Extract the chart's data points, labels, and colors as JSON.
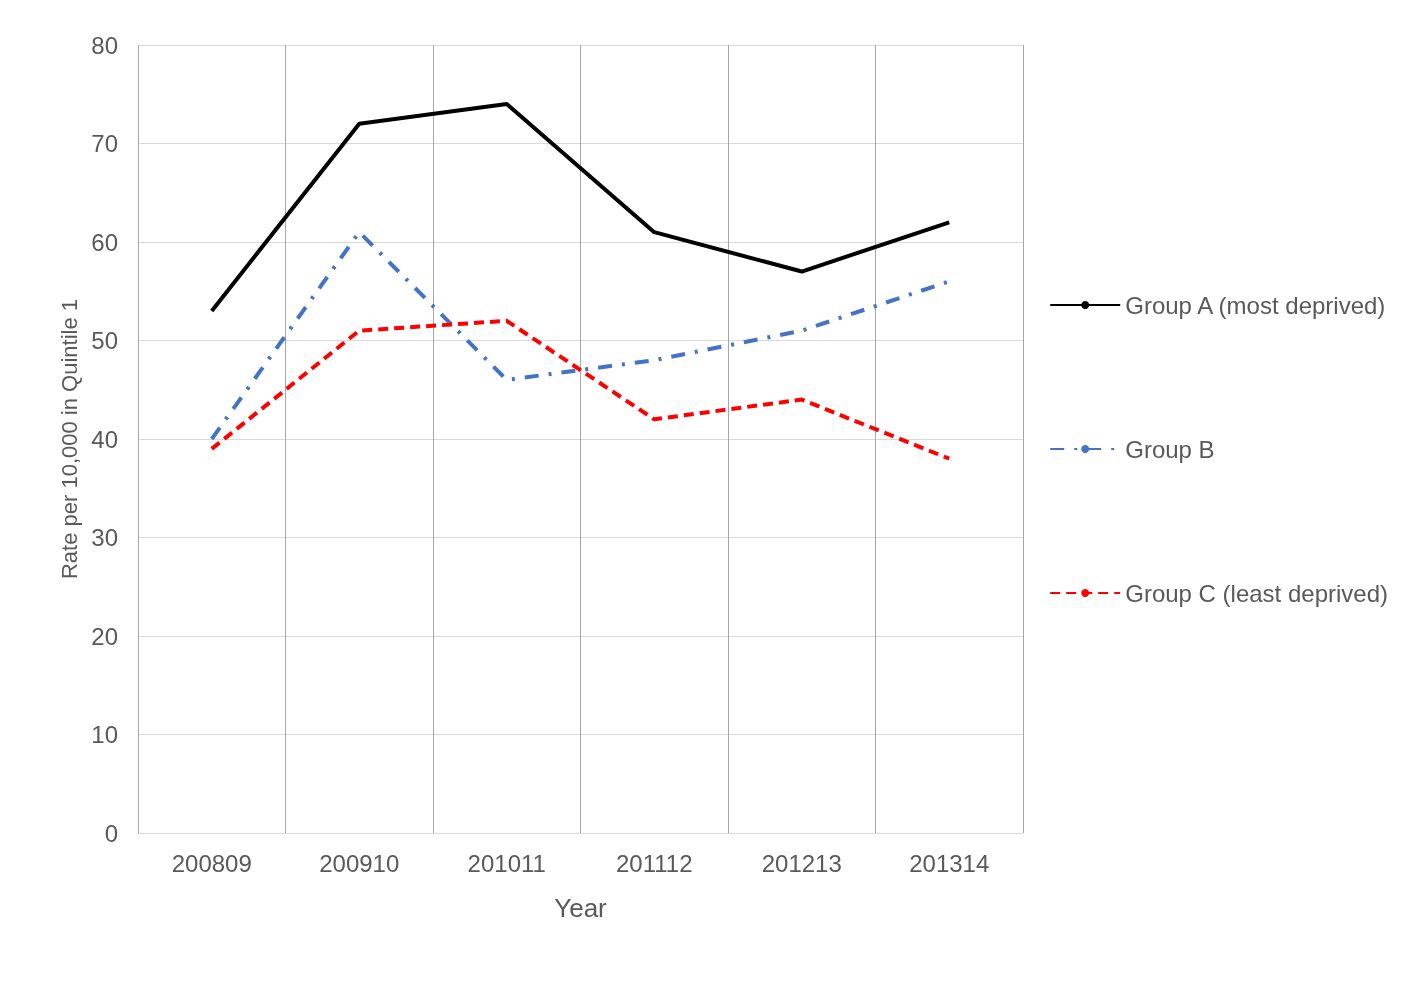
{
  "chart_data": {
    "type": "line",
    "xlabel": "Year",
    "ylabel": "Rate per 10,000 in Quintile 1",
    "categories": [
      "200809",
      "200910",
      "201011",
      "201112",
      "201213",
      "201314"
    ],
    "series": [
      {
        "name": "Group A (most deprived)",
        "color": "#000000",
        "line_style": "solid",
        "values": [
          53,
          72,
          74,
          61,
          57,
          62
        ]
      },
      {
        "name": "Group B",
        "color": "#4472c4",
        "line_style": "dashdot",
        "values": [
          40,
          61,
          46,
          48,
          51,
          56
        ]
      },
      {
        "name": "Group C (least deprived)",
        "color": "#ff0000",
        "line_style": "dashed",
        "values": [
          39,
          51,
          52,
          42,
          44,
          38
        ]
      }
    ],
    "ylim": [
      0,
      80
    ],
    "yticks": [
      0,
      10,
      20,
      30,
      40,
      50,
      60,
      70,
      80
    ],
    "grid": true,
    "legend": "right",
    "marker": "none"
  }
}
